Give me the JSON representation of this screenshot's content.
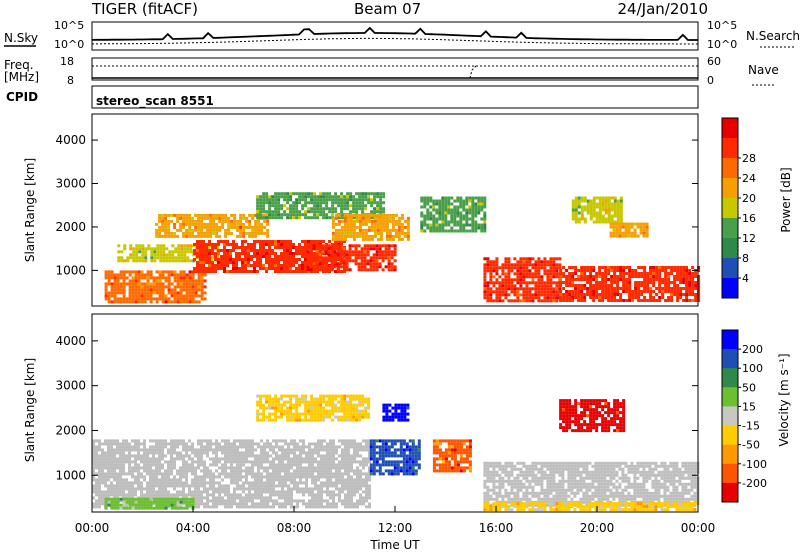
{
  "header": {
    "site": "TIGER (fitACF)",
    "beam": "Beam 07",
    "date": "24/Jan/2010"
  },
  "noise_panel": {
    "left_label": "N.Sky",
    "right_label": "N.Search",
    "left_ticks": [
      "10^5",
      "10^0"
    ],
    "right_ticks": [
      "10^5",
      "10^0"
    ]
  },
  "freq_panel": {
    "left_label_1": "Freq.",
    "left_label_2": "[MHz]",
    "right_label": "Nave",
    "left_ticks": [
      "18",
      "8"
    ],
    "right_ticks": [
      "60",
      "0"
    ]
  },
  "cpid": {
    "label": "CPID",
    "program": "stereo_scan 8551"
  },
  "colors": {
    "power": [
      "#0000ff",
      "#1f4fb5",
      "#2f8a4a",
      "#4aa04a",
      "#c8c800",
      "#f5a000",
      "#ff6a00",
      "#ff2a00",
      "#e60000"
    ],
    "velocity": [
      "#0000ff",
      "#1f4fb5",
      "#2f8a4a",
      "#6cc030",
      "#c8c8c0",
      "#ffcc00",
      "#ff9900",
      "#ff5500",
      "#e60000"
    ],
    "ground_scatter": "#bebebe"
  },
  "chart_data": [
    {
      "type": "heatmap",
      "panel": "power",
      "ylabel": "Slant Range [km]",
      "xlabel": "",
      "xlim": [
        "00:00",
        "24:00"
      ],
      "ylim": [
        180,
        4600
      ],
      "y_ticks": [
        "1000",
        "2000",
        "3000",
        "4000"
      ],
      "colorbar_label": "Power [dB]",
      "colorbar_ticks": [
        "4",
        "8",
        "12",
        "16",
        "20",
        "24",
        "28"
      ],
      "colorbar_range": [
        0,
        32
      ],
      "series": [
        {
          "from_hour": 0.5,
          "to_hour": 4.5,
          "range_km": [
            250,
            1000
          ],
          "value": 24
        },
        {
          "from_hour": 1.0,
          "to_hour": 5.0,
          "range_km": [
            1200,
            1600
          ],
          "value": 16
        },
        {
          "from_hour": 2.5,
          "to_hour": 7.0,
          "range_km": [
            1800,
            2300
          ],
          "value": 20
        },
        {
          "from_hour": 4.0,
          "to_hour": 10.0,
          "range_km": [
            1000,
            1700
          ],
          "value": 28
        },
        {
          "from_hour": 6.5,
          "to_hour": 11.5,
          "range_km": [
            2200,
            2800
          ],
          "value": 12
        },
        {
          "from_hour": 8.5,
          "to_hour": 12.0,
          "range_km": [
            1000,
            1600
          ],
          "value": 28
        },
        {
          "from_hour": 9.5,
          "to_hour": 12.5,
          "range_km": [
            1700,
            2300
          ],
          "value": 20
        },
        {
          "from_hour": 13.0,
          "to_hour": 15.5,
          "range_km": [
            1900,
            2700
          ],
          "value": 12
        },
        {
          "from_hour": 15.5,
          "to_hour": 18.5,
          "range_km": [
            300,
            1300
          ],
          "value": 28
        },
        {
          "from_hour": 18.5,
          "to_hour": 24.0,
          "range_km": [
            300,
            1100
          ],
          "value": 28
        },
        {
          "from_hour": 19.0,
          "to_hour": 21.0,
          "range_km": [
            2100,
            2700
          ],
          "value": 16
        },
        {
          "from_hour": 20.5,
          "to_hour": 22.0,
          "range_km": [
            1800,
            2100
          ],
          "value": 20
        }
      ]
    },
    {
      "type": "heatmap",
      "panel": "velocity",
      "ylabel": "Slant Range [km]",
      "xlabel": "Time UT",
      "xlim": [
        "00:00",
        "24:00"
      ],
      "ylim": [
        180,
        4600
      ],
      "y_ticks": [
        "1000",
        "2000",
        "3000",
        "4000"
      ],
      "x_ticks": [
        "00:00",
        "04:00",
        "08:00",
        "12:00",
        "16:00",
        "20:00",
        "00:00"
      ],
      "colorbar_label": "Velocity [m s⁻¹]",
      "colorbar_ticks": [
        "200",
        "100",
        "50",
        "15",
        "-15",
        "-50",
        "-100",
        "-200"
      ],
      "colorbar_range": [
        -200,
        200
      ],
      "series": [
        {
          "from_hour": 0.0,
          "to_hour": 11.0,
          "range_km": [
            300,
            1800
          ],
          "value": 0,
          "ground_scatter": true
        },
        {
          "from_hour": 0.5,
          "to_hour": 4.0,
          "range_km": [
            250,
            500
          ],
          "value": 50
        },
        {
          "from_hour": 6.5,
          "to_hour": 11.0,
          "range_km": [
            2200,
            2800
          ],
          "value": -40
        },
        {
          "from_hour": 11.0,
          "to_hour": 13.0,
          "range_km": [
            1000,
            1800
          ],
          "value": 150
        },
        {
          "from_hour": 11.5,
          "to_hour": 12.5,
          "range_km": [
            2200,
            2600
          ],
          "value": 200
        },
        {
          "from_hour": 13.5,
          "to_hour": 15.0,
          "range_km": [
            1100,
            1800
          ],
          "value": -120
        },
        {
          "from_hour": 15.5,
          "to_hour": 24.0,
          "range_km": [
            300,
            1300
          ],
          "value": 0,
          "ground_scatter": true
        },
        {
          "from_hour": 15.5,
          "to_hour": 24.0,
          "range_km": [
            250,
            400
          ],
          "value": -40
        },
        {
          "from_hour": 18.5,
          "to_hour": 21.0,
          "range_km": [
            2000,
            2700
          ],
          "value": -200
        }
      ]
    }
  ]
}
